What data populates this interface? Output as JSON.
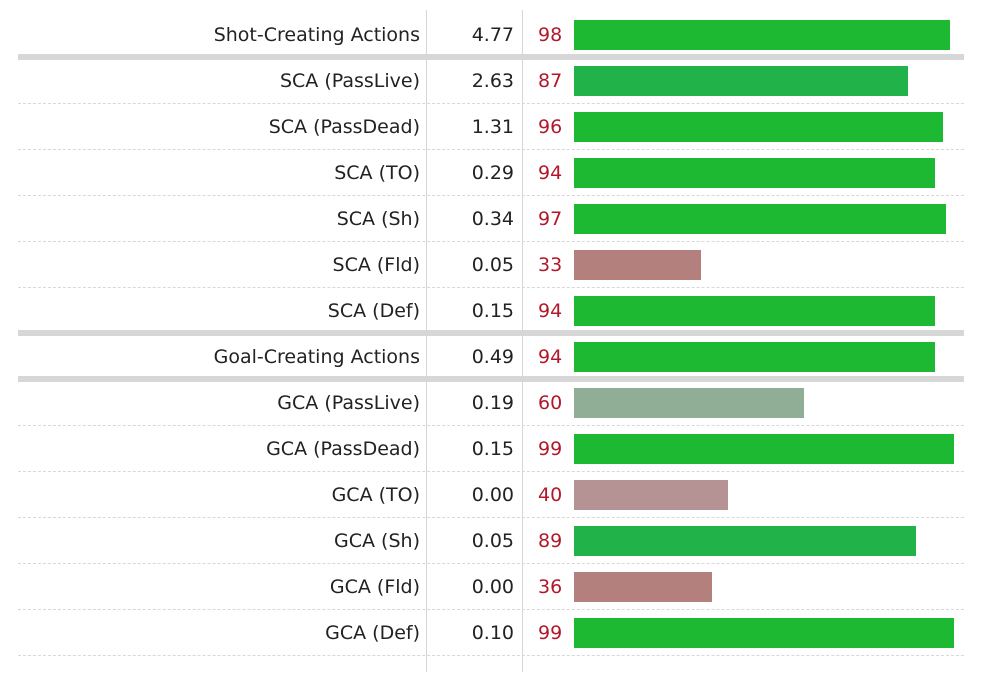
{
  "rows": [
    {
      "label": "Shot-Creating Actions",
      "value": "4.77",
      "percentile": 98,
      "color": "#1db933",
      "header": true
    },
    {
      "label": "SCA (PassLive)",
      "value": "2.63",
      "percentile": 87,
      "color": "#21b24a",
      "header": false
    },
    {
      "label": "SCA (PassDead)",
      "value": "1.31",
      "percentile": 96,
      "color": "#1db933",
      "header": false
    },
    {
      "label": "SCA (TO)",
      "value": "0.29",
      "percentile": 94,
      "color": "#1db933",
      "header": false
    },
    {
      "label": "SCA (Sh)",
      "value": "0.34",
      "percentile": 97,
      "color": "#1db933",
      "header": false
    },
    {
      "label": "SCA (Fld)",
      "value": "0.05",
      "percentile": 33,
      "color": "#b3807e",
      "header": false
    },
    {
      "label": "SCA (Def)",
      "value": "0.15",
      "percentile": 94,
      "color": "#1db933",
      "header": false
    },
    {
      "label": "Goal-Creating Actions",
      "value": "0.49",
      "percentile": 94,
      "color": "#1db933",
      "header": true
    },
    {
      "label": "GCA (PassLive)",
      "value": "0.19",
      "percentile": 60,
      "color": "#8fae95",
      "header": false
    },
    {
      "label": "GCA (PassDead)",
      "value": "0.15",
      "percentile": 99,
      "color": "#1db933",
      "header": false
    },
    {
      "label": "GCA (TO)",
      "value": "0.00",
      "percentile": 40,
      "color": "#b59394",
      "header": false
    },
    {
      "label": "GCA (Sh)",
      "value": "0.05",
      "percentile": 89,
      "color": "#21b24a",
      "header": false
    },
    {
      "label": "GCA (Fld)",
      "value": "0.00",
      "percentile": 36,
      "color": "#b3807e",
      "header": false
    },
    {
      "label": "GCA (Def)",
      "value": "0.10",
      "percentile": 99,
      "color": "#1db933",
      "header": false
    }
  ],
  "chart_data": {
    "type": "bar",
    "orientation": "horizontal",
    "categories": [
      "Shot-Creating Actions",
      "SCA (PassLive)",
      "SCA (PassDead)",
      "SCA (TO)",
      "SCA (Sh)",
      "SCA (Fld)",
      "SCA (Def)",
      "Goal-Creating Actions",
      "GCA (PassLive)",
      "GCA (PassDead)",
      "GCA (TO)",
      "GCA (Sh)",
      "GCA (Fld)",
      "GCA (Def)"
    ],
    "per90": [
      4.77,
      2.63,
      1.31,
      0.29,
      0.34,
      0.05,
      0.15,
      0.49,
      0.19,
      0.15,
      0.0,
      0.05,
      0.0,
      0.1
    ],
    "values": [
      98,
      87,
      96,
      94,
      97,
      33,
      94,
      94,
      60,
      99,
      40,
      89,
      36,
      99
    ],
    "xlim": [
      0,
      100
    ],
    "grid": false,
    "legend": "none"
  }
}
